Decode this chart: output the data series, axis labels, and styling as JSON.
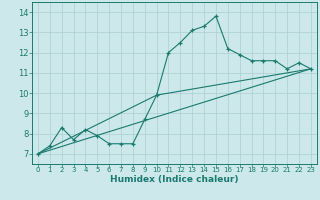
{
  "xlabel": "Humidex (Indice chaleur)",
  "ylabel": "",
  "xlim": [
    -0.5,
    23.5
  ],
  "ylim": [
    6.5,
    14.5
  ],
  "xticks": [
    0,
    1,
    2,
    3,
    4,
    5,
    6,
    7,
    8,
    9,
    10,
    11,
    12,
    13,
    14,
    15,
    16,
    17,
    18,
    19,
    20,
    21,
    22,
    23
  ],
  "yticks": [
    7,
    8,
    9,
    10,
    11,
    12,
    13,
    14
  ],
  "bg_color": "#cce8ea",
  "grid_color": "#aacfd2",
  "line_color": "#1a7a6e",
  "line1_x": [
    0,
    1,
    2,
    3,
    4,
    5,
    6,
    7,
    8,
    9,
    10,
    11,
    12,
    13,
    14,
    15,
    16,
    17,
    18,
    19,
    20,
    21,
    22,
    23
  ],
  "line1_y": [
    7.0,
    7.4,
    8.3,
    7.7,
    8.2,
    7.9,
    7.5,
    7.5,
    7.5,
    8.7,
    9.9,
    12.0,
    12.5,
    13.1,
    13.3,
    13.8,
    12.2,
    11.9,
    11.6,
    11.6,
    11.6,
    11.2,
    11.5,
    11.2
  ],
  "line2_x": [
    0,
    23
  ],
  "line2_y": [
    7.0,
    11.2
  ],
  "line3_x": [
    0,
    10,
    23
  ],
  "line3_y": [
    7.0,
    9.9,
    11.2
  ]
}
